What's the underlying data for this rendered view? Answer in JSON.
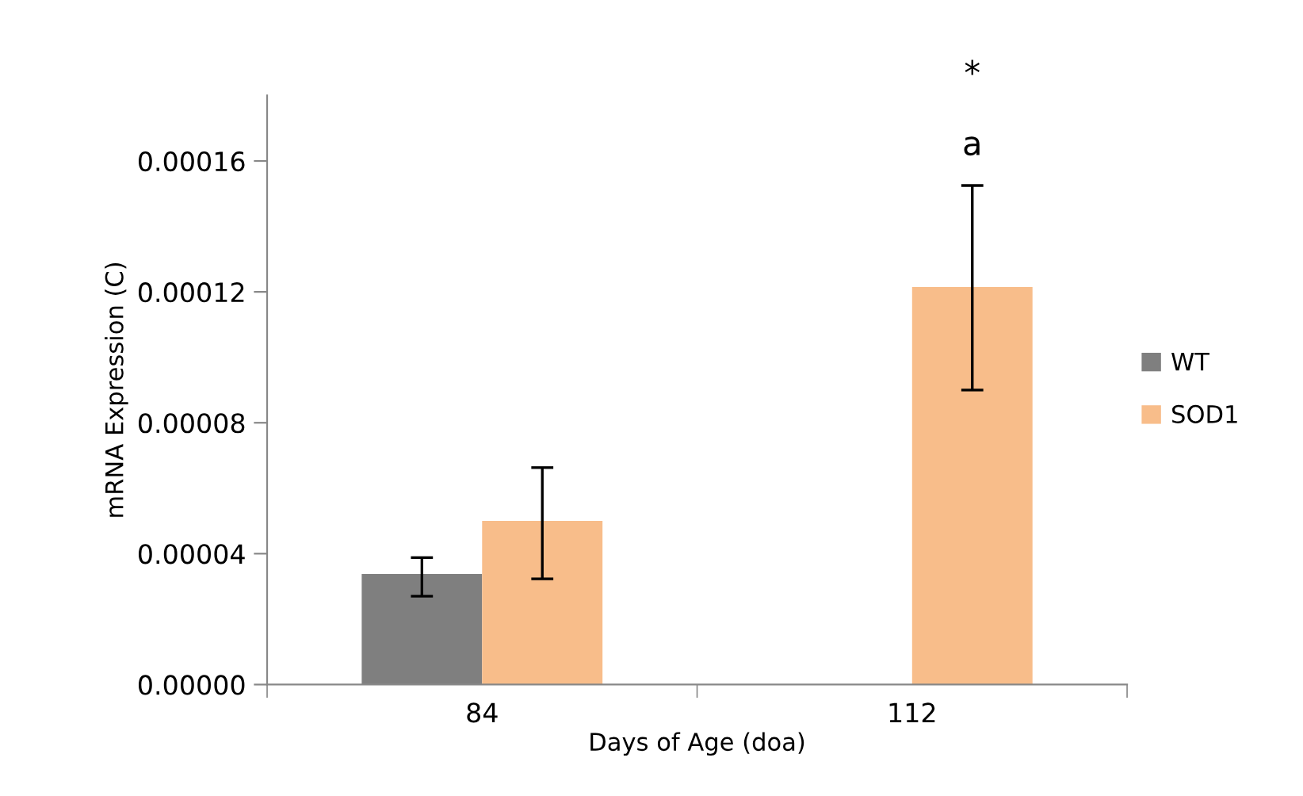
{
  "chart_data": {
    "type": "bar",
    "xlabel": "Days of Age (doa)",
    "ylabel": "mRNA Expression (C)",
    "categories": [
      "84",
      "112"
    ],
    "series": [
      {
        "name": "WT",
        "color": "#7f7f7f",
        "values": [
          3.38e-05,
          null
        ],
        "errors": [
          [
            2.7e-05,
            3.88e-05
          ],
          null
        ]
      },
      {
        "name": "SOD1",
        "color": "#f8bd8a",
        "values": [
          5e-05,
          0.0001215
        ],
        "errors": [
          [
            3.23e-05,
            6.63e-05
          ],
          [
            9e-05,
            0.0001525
          ]
        ]
      }
    ],
    "ylim": [
      0,
      0.00018
    ],
    "yticks": [
      {
        "value": 0,
        "label": "0.00000"
      },
      {
        "value": 4e-05,
        "label": "0.00004"
      },
      {
        "value": 8e-05,
        "label": "0.00008"
      },
      {
        "value": 0.00012,
        "label": "0.00012"
      },
      {
        "value": 0.00016,
        "label": "0.00016"
      }
    ],
    "annotations": [
      "a",
      "*"
    ],
    "legend": "right",
    "grid": false
  }
}
